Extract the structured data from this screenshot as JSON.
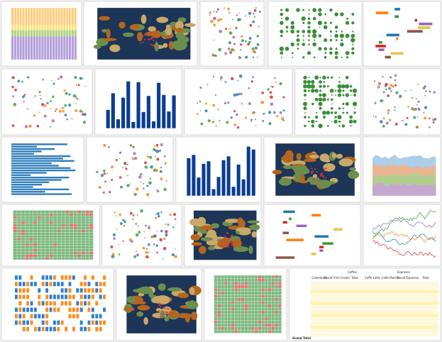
{
  "table": {
    "groups": [
      "Coffee",
      "Espresso"
    ],
    "columns": [
      "Colombian",
      "Decaf Irish Cream",
      "Total",
      "Caffe Latte",
      "Caffe Mocha",
      "Decaf Espresso",
      "Total"
    ],
    "total_row": "Grand Total"
  }
}
